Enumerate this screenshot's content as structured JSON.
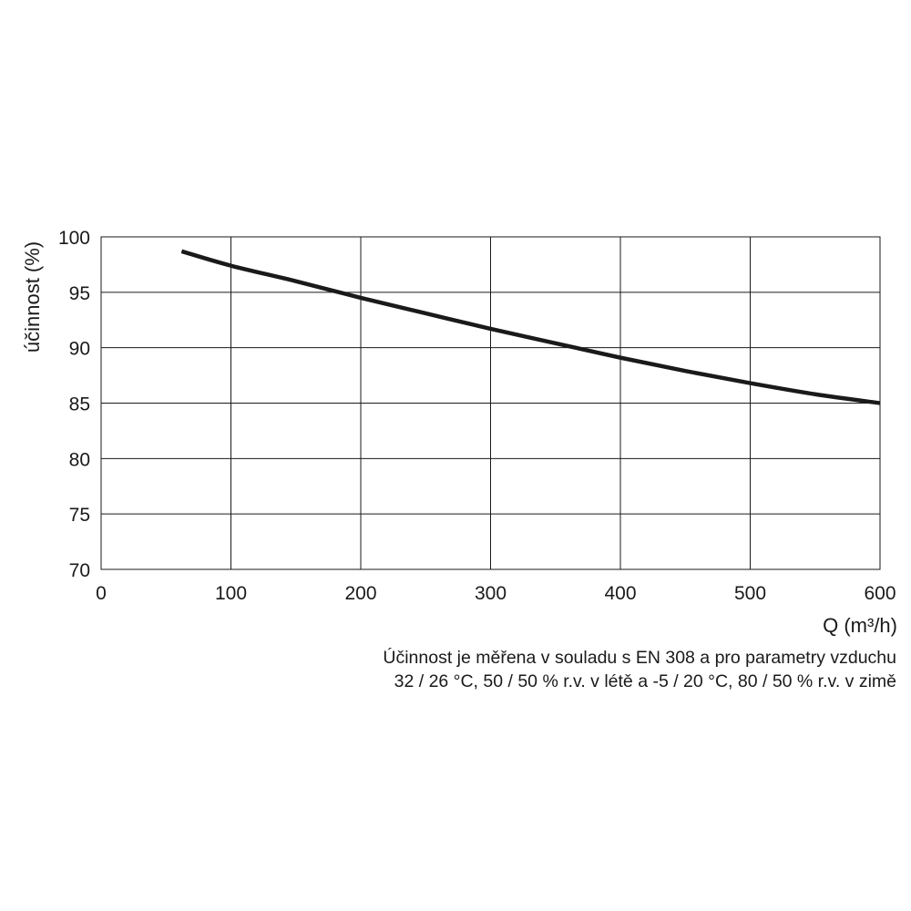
{
  "chart_data": {
    "type": "line",
    "title": "",
    "xlabel": "Q (m³/h)",
    "ylabel": "účinnost (%)",
    "xlim": [
      0,
      600
    ],
    "ylim": [
      70,
      100
    ],
    "x_ticks": [
      0,
      100,
      200,
      300,
      400,
      500,
      600
    ],
    "y_ticks": [
      70,
      75,
      80,
      85,
      90,
      95,
      100
    ],
    "grid": true,
    "legend": "none",
    "series": [
      {
        "color": "#1a1a1a",
        "x": [
          62,
          100,
          150,
          200,
          250,
          300,
          350,
          400,
          450,
          500,
          550,
          600
        ],
        "y": [
          98.7,
          97.4,
          96.0,
          94.5,
          93.1,
          91.7,
          90.4,
          89.1,
          87.9,
          86.8,
          85.8,
          85.0
        ]
      }
    ]
  },
  "footnote": {
    "line1": "Účinnost je měřena v souladu s EN 308 a pro parametry vzduchu",
    "line2": "32 / 26 °C, 50 / 50 % r.v. v létě a -5 / 20 °C, 80 / 50 % r.v. v zimě"
  }
}
